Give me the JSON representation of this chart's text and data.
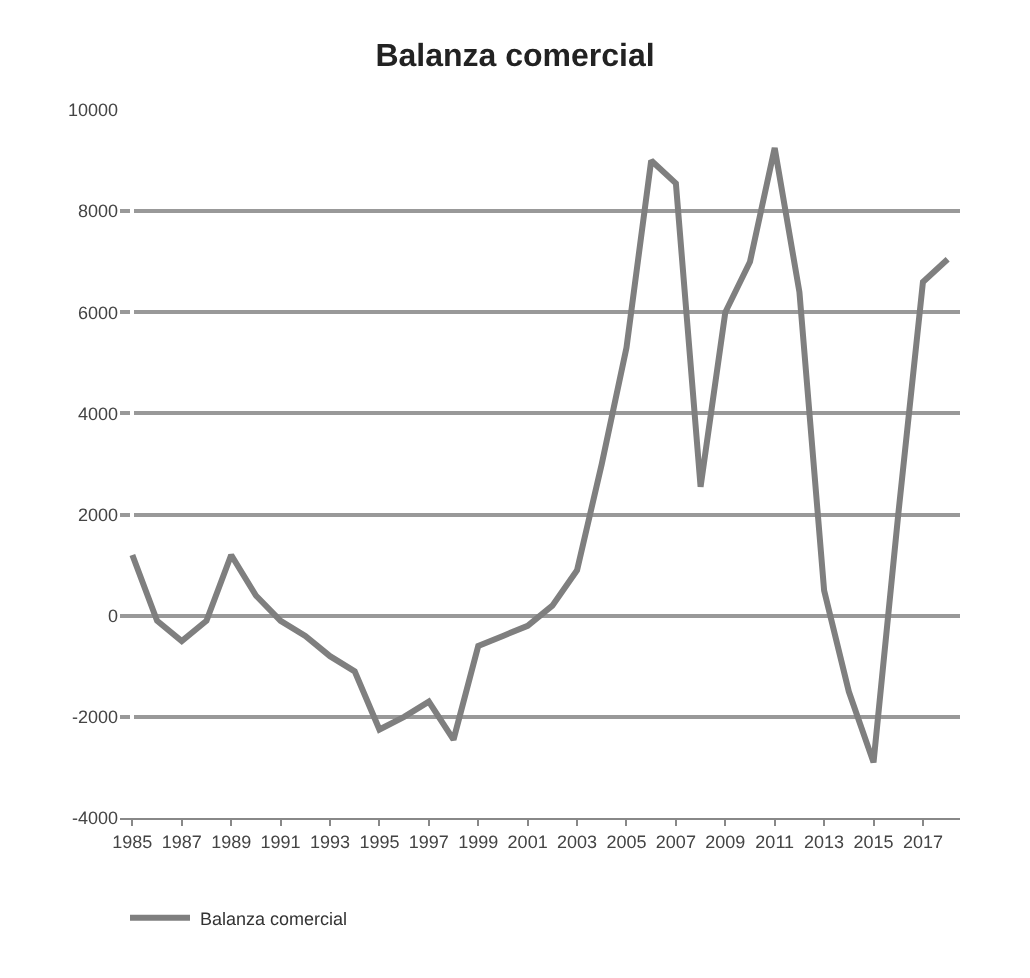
{
  "chart_data": {
    "type": "line",
    "title": "Balanza comercial",
    "categories": [
      "1985",
      null,
      "1987",
      null,
      "1989",
      null,
      "1991",
      null,
      "1993",
      null,
      "1995",
      null,
      "1997",
      null,
      "1999",
      null,
      "2001",
      null,
      "2003",
      null,
      "2005",
      null,
      "2007",
      null,
      "2009",
      null,
      "2011",
      null,
      "2013",
      null,
      "2015",
      null,
      "2017",
      null
    ],
    "series": [
      {
        "name": "Balanza comercial",
        "color": "#7f7f7f",
        "values": [
          1200,
          -100,
          -500,
          -100,
          1200,
          400,
          -100,
          -400,
          -800,
          -1100,
          -2250,
          -2000,
          -1700,
          -2450,
          -600,
          -400,
          -200,
          200,
          900,
          3000,
          5300,
          9000,
          8550,
          2550,
          6000,
          7000,
          9250,
          6400,
          500,
          -1500,
          -2900,
          2000,
          6600,
          7050
        ]
      }
    ],
    "ylim": [
      -4000,
      10000
    ],
    "yticks": [
      -4000,
      -2000,
      0,
      2000,
      4000,
      6000,
      8000,
      10000
    ],
    "grid": "y",
    "legend": "bottom left",
    "marker": "none",
    "line_style": "solid"
  }
}
